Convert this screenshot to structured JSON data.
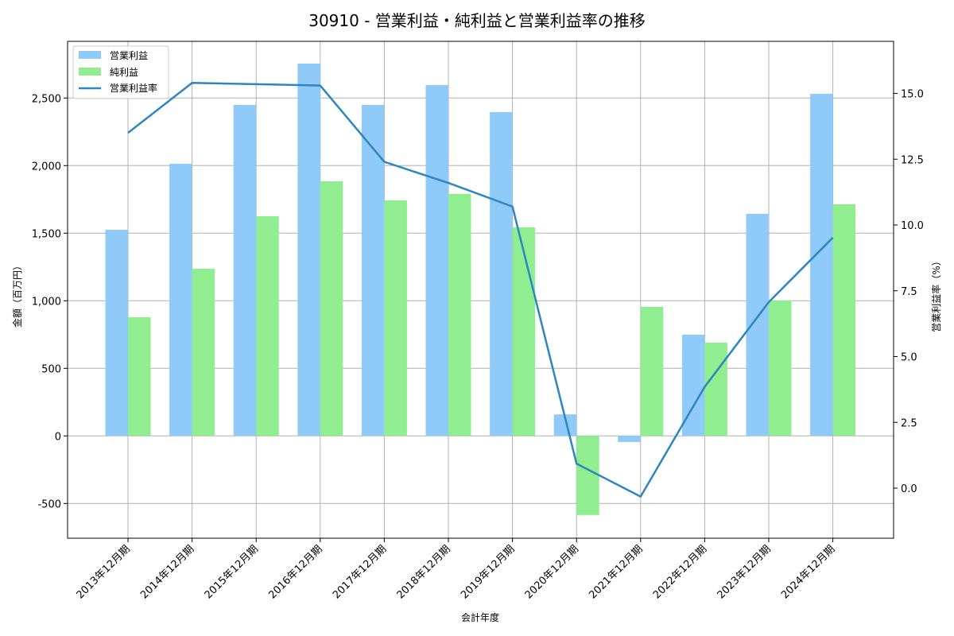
{
  "chart_data": {
    "type": "bar+line",
    "title": "30910 - 営業利益・純利益と営業利益率の推移",
    "xlabel": "会計年度",
    "ylabel": "金額（百万円）",
    "ylabel_right": "営業利益率（%）",
    "categories": [
      "2013年12月期",
      "2014年12月期",
      "2015年12月期",
      "2016年12月期",
      "2017年12月期",
      "2018年12月期",
      "2019年12月期",
      "2020年12月期",
      "2021年12月期",
      "2022年12月期",
      "2023年12月期",
      "2024年12月期"
    ],
    "series": [
      {
        "name": "営業利益",
        "type": "bar",
        "axis": "left",
        "color": "#90CAF9",
        "values": [
          1525,
          2013,
          2449,
          2755,
          2449,
          2596,
          2396,
          159,
          -45,
          749,
          1643,
          2531
        ]
      },
      {
        "name": "純利益",
        "type": "bar",
        "axis": "left",
        "color": "#90EE90",
        "values": [
          878,
          1237,
          1625,
          1884,
          1743,
          1790,
          1543,
          -586,
          955,
          690,
          1002,
          1714
        ]
      },
      {
        "name": "営業利益率",
        "type": "line",
        "axis": "right",
        "color": "#2E86C1",
        "values": [
          13.5,
          15.4,
          15.35,
          15.3,
          12.4,
          11.6,
          10.7,
          0.93,
          -0.32,
          3.85,
          7.07,
          9.52
        ]
      }
    ],
    "ylim": [
      -760,
      2900
    ],
    "ylim_right": [
      -1.0,
      17.0
    ],
    "yticks": [
      -500,
      0,
      500,
      1000,
      1500,
      2000,
      2500
    ],
    "ytick_labels": [
      "-500",
      "0",
      "500",
      "1,000",
      "1,500",
      "2,000",
      "2,500"
    ],
    "yticks_right": [
      0.0,
      2.5,
      5.0,
      7.5,
      10.0,
      12.5,
      15.0
    ],
    "ytick_labels_right": [
      "0.0",
      "2.5",
      "5.0",
      "7.5",
      "10.0",
      "12.5",
      "15.0"
    ],
    "grid": true,
    "legend_position": "upper left"
  }
}
